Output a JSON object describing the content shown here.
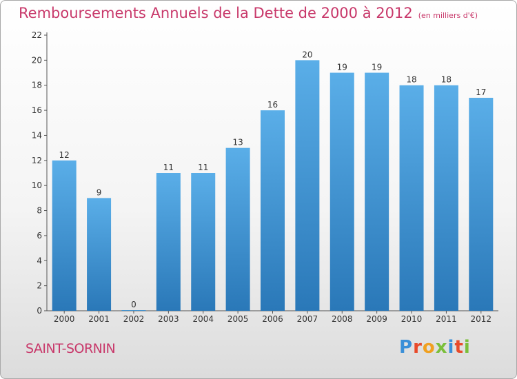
{
  "title": "Remboursements Annuels de la Dette de 2000 à 2012",
  "unit": "(en milliers d'€)",
  "commune": "SAINT-SORNIN",
  "logo": {
    "text": "Proxiti",
    "colors": [
      "#3a8fd8",
      "#e84a2a",
      "#f0a020",
      "#7abf3a",
      "#3a8fd8",
      "#e84a2a",
      "#7abf3a"
    ]
  },
  "colors": {
    "accent": "#c8386a",
    "bar_top": "#5aaee8",
    "bar_bottom": "#2a78b8"
  },
  "chart_data": {
    "type": "bar",
    "title": "Remboursements Annuels de la Dette de 2000 à 2012",
    "categories": [
      "2000",
      "2001",
      "2002",
      "2003",
      "2004",
      "2005",
      "2006",
      "2007",
      "2008",
      "2009",
      "2010",
      "2011",
      "2012"
    ],
    "values": [
      12,
      9,
      0,
      11,
      11,
      13,
      16,
      20,
      19,
      19,
      18,
      18,
      17
    ],
    "ylim": [
      0,
      22
    ],
    "yticks": [
      0,
      2,
      4,
      6,
      8,
      10,
      12,
      14,
      16,
      18,
      20,
      22
    ],
    "xlabel": "",
    "ylabel": "",
    "grid": false,
    "data_labels": true
  }
}
